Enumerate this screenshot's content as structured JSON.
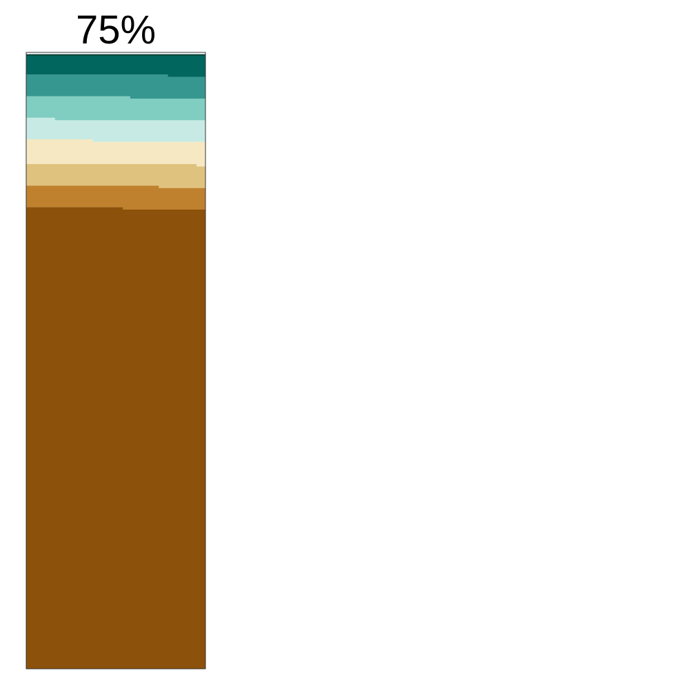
{
  "chart_data": {
    "type": "area",
    "title": "75%",
    "xlabel": "",
    "ylabel": "",
    "grid": false,
    "legend": "none",
    "orientation": "vertical-stack",
    "x": [
      0,
      1
    ],
    "ylim": [
      0,
      100
    ],
    "series": [
      {
        "color": "#8c510a",
        "values": [
          74.9,
          74.5
        ]
      },
      {
        "color": "#bf812d",
        "values": [
          3.5,
          3.5
        ]
      },
      {
        "color": "#dfc27d",
        "values": [
          3.5,
          3.5
        ]
      },
      {
        "color": "#f6e8c3",
        "values": [
          4.0,
          4.0
        ]
      },
      {
        "color": "#c7eae5",
        "values": [
          3.5,
          3.5
        ]
      },
      {
        "color": "#80cdc1",
        "values": [
          3.5,
          3.5
        ]
      },
      {
        "color": "#35978f",
        "values": [
          3.5,
          3.5
        ]
      },
      {
        "color": "#01665e",
        "values": [
          3.1,
          3.5
        ]
      },
      {
        "color": "#003c30",
        "values": [
          0.2,
          0.2
        ]
      }
    ],
    "step_breaks": [
      0.54,
      0.74,
      0.95,
      0.37,
      0.16,
      0.58,
      0.79,
      1.0
    ]
  }
}
